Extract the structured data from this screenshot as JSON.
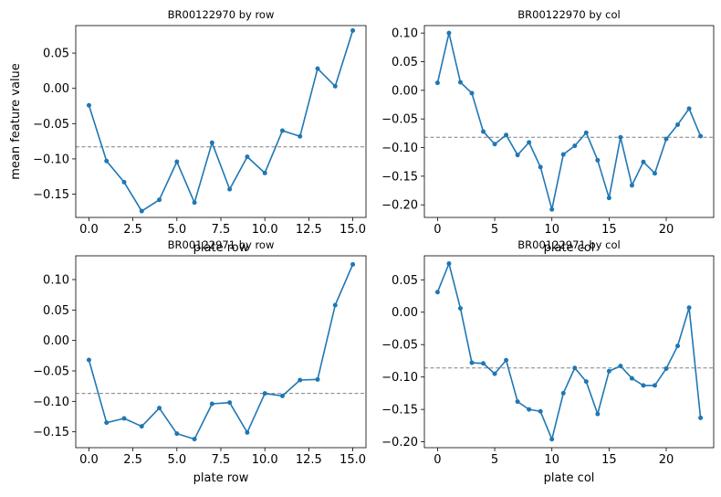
{
  "figure": {
    "ylabel_shared": "mean feature value"
  },
  "colors": {
    "line": "#1f77b4",
    "mean_line": "#808080",
    "axis": "#000000"
  },
  "chart_data": [
    {
      "type": "line",
      "title": "BR00122970 by row",
      "xlabel": "plate row",
      "ylabel": "mean feature value",
      "xlim": [
        -0.75,
        15.75
      ],
      "ylim": [
        -0.183,
        0.089
      ],
      "xticks": [
        0,
        2.5,
        5,
        7.5,
        10,
        12.5,
        15
      ],
      "xtick_labels": [
        "0.0",
        "2.5",
        "5.0",
        "7.5",
        "10.0",
        "12.5",
        "15.0"
      ],
      "yticks": [
        -0.15,
        -0.1,
        -0.05,
        0.0,
        0.05
      ],
      "ytick_labels": [
        "−0.15",
        "−0.10",
        "−0.05",
        "0.00",
        "0.05"
      ],
      "mean": -0.083,
      "x": [
        0,
        1,
        2,
        3,
        4,
        5,
        6,
        7,
        8,
        9,
        10,
        11,
        12,
        13,
        14,
        15
      ],
      "y": [
        -0.024,
        -0.103,
        -0.133,
        -0.174,
        -0.158,
        -0.104,
        -0.162,
        -0.077,
        -0.143,
        -0.097,
        -0.12,
        -0.06,
        -0.068,
        0.028,
        0.003,
        0.082
      ]
    },
    {
      "type": "line",
      "title": "BR00122970 by col",
      "xlabel": "plate col",
      "ylabel": "",
      "xlim": [
        -1.15,
        24.15
      ],
      "ylim": [
        -0.222,
        0.113
      ],
      "xticks": [
        0,
        5,
        10,
        15,
        20
      ],
      "xtick_labels": [
        "0",
        "5",
        "10",
        "15",
        "20"
      ],
      "yticks": [
        -0.2,
        -0.15,
        -0.1,
        -0.05,
        0.0,
        0.05,
        0.1
      ],
      "ytick_labels": [
        "−0.20",
        "−0.15",
        "−0.10",
        "−0.05",
        "0.00",
        "0.05",
        "0.10"
      ],
      "mean": -0.082,
      "x": [
        0,
        1,
        2,
        3,
        4,
        5,
        6,
        7,
        8,
        9,
        10,
        11,
        12,
        13,
        14,
        15,
        16,
        17,
        18,
        19,
        20,
        21,
        22,
        23
      ],
      "y": [
        0.013,
        0.1,
        0.014,
        -0.005,
        -0.072,
        -0.094,
        -0.078,
        -0.113,
        -0.091,
        -0.134,
        -0.208,
        -0.112,
        -0.097,
        -0.074,
        -0.122,
        -0.188,
        -0.082,
        -0.166,
        -0.125,
        -0.145,
        -0.085,
        -0.06,
        -0.032,
        -0.08
      ]
    },
    {
      "type": "line",
      "title": "BR00122971 by row",
      "xlabel": "plate row",
      "ylabel": "",
      "xlim": [
        -0.75,
        15.75
      ],
      "ylim": [
        -0.176,
        0.139
      ],
      "xticks": [
        0,
        2.5,
        5,
        7.5,
        10,
        12.5,
        15
      ],
      "xtick_labels": [
        "0.0",
        "2.5",
        "5.0",
        "7.5",
        "10.0",
        "12.5",
        "15.0"
      ],
      "yticks": [
        -0.15,
        -0.1,
        -0.05,
        0.0,
        0.05,
        0.1
      ],
      "ytick_labels": [
        "−0.15",
        "−0.10",
        "−0.05",
        "0.00",
        "0.05",
        "0.10"
      ],
      "mean": -0.087,
      "x": [
        0,
        1,
        2,
        3,
        4,
        5,
        6,
        7,
        8,
        9,
        10,
        11,
        12,
        13,
        14,
        15
      ],
      "y": [
        -0.032,
        -0.135,
        -0.128,
        -0.141,
        -0.111,
        -0.153,
        -0.162,
        -0.104,
        -0.102,
        -0.151,
        -0.087,
        -0.091,
        -0.065,
        -0.064,
        0.058,
        0.125
      ]
    },
    {
      "type": "line",
      "title": "BR00122971 by col",
      "xlabel": "plate col",
      "ylabel": "",
      "xlim": [
        -1.15,
        24.15
      ],
      "ylim": [
        -0.209,
        0.087
      ],
      "xticks": [
        0,
        5,
        10,
        15,
        20
      ],
      "xtick_labels": [
        "0",
        "5",
        "10",
        "15",
        "20"
      ],
      "yticks": [
        -0.2,
        -0.15,
        -0.1,
        -0.05,
        0.0,
        0.05
      ],
      "ytick_labels": [
        "−0.20",
        "−0.15",
        "−0.10",
        "−0.05",
        "0.00",
        "0.05"
      ],
      "mean": -0.086,
      "x": [
        0,
        1,
        2,
        3,
        4,
        5,
        6,
        7,
        8,
        9,
        10,
        11,
        12,
        13,
        14,
        15,
        16,
        17,
        18,
        19,
        20,
        21,
        22,
        23
      ],
      "y": [
        0.031,
        0.075,
        0.006,
        -0.078,
        -0.079,
        -0.095,
        -0.074,
        -0.138,
        -0.15,
        -0.153,
        -0.196,
        -0.125,
        -0.086,
        -0.107,
        -0.157,
        -0.091,
        -0.083,
        -0.102,
        -0.113,
        -0.113,
        -0.087,
        -0.052,
        0.007,
        -0.163
      ]
    }
  ]
}
